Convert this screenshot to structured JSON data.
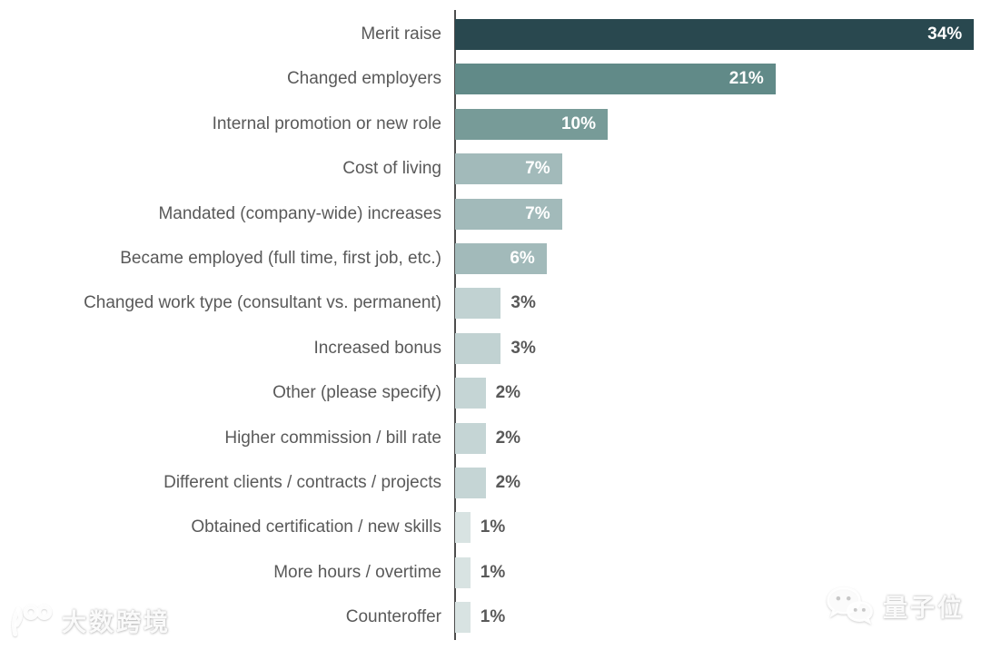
{
  "chart_data": {
    "type": "bar",
    "orientation": "horizontal",
    "title": "",
    "xlabel": "",
    "ylabel": "",
    "grid": false,
    "legend": false,
    "xlim": [
      0,
      34.5
    ],
    "categories": [
      "Merit raise",
      "Changed employers",
      "Internal promotion or new role",
      "Cost of living",
      "Mandated (company-wide) increases",
      "Became employed (full time, first job, etc.)",
      "Changed work type (consultant vs. permanent)",
      "Increased bonus",
      "Other (please specify)",
      "Higher commission / bill rate",
      "Different clients / contracts / projects",
      "Obtained certification / new skills",
      "More hours / overtime",
      "Counteroffer"
    ],
    "values": [
      34,
      21,
      10,
      7,
      7,
      6,
      3,
      3,
      2,
      2,
      2,
      1,
      1,
      1
    ],
    "value_labels": [
      "34%",
      "21%",
      "10%",
      "7%",
      "7%",
      "6%",
      "3%",
      "3%",
      "2%",
      "2%",
      "2%",
      "1%",
      "1%",
      "1%"
    ],
    "bar_colors": [
      "#29484f",
      "#618a88",
      "#779b98",
      "#a2baba",
      "#a2baba",
      "#a2baba",
      "#c1d2d2",
      "#c1d2d2",
      "#c5d5d5",
      "#c5d5d5",
      "#c5d5d5",
      "#d8e3e2",
      "#d8e3e2",
      "#d8e3e2"
    ],
    "inside_label_min_value": 6
  },
  "style": {
    "background": "#ffffff",
    "axis_color": "#4d4d4d",
    "category_label_color": "#595959",
    "inside_value_color": "#ffffff",
    "outside_value_color": "#595959"
  },
  "watermarks": {
    "bottom_left": {
      "text": "大数跨境"
    },
    "bottom_right": {
      "text": "量子位"
    }
  }
}
